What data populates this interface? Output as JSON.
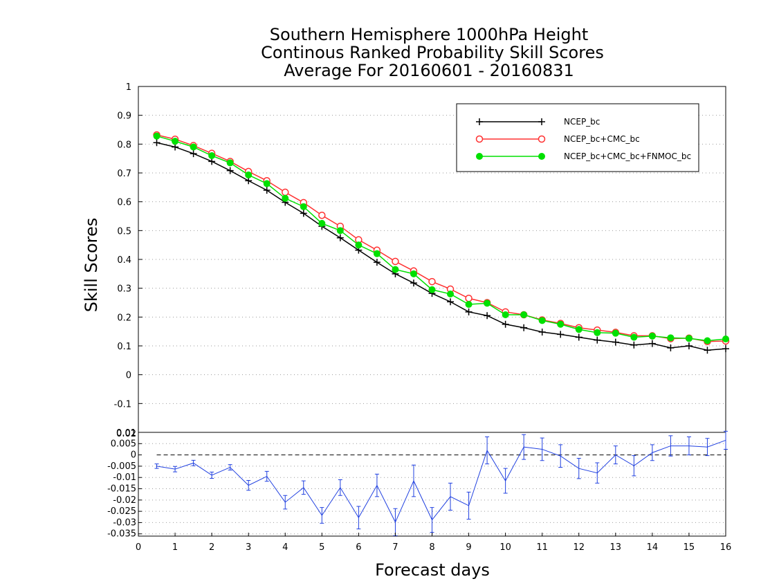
{
  "chart_data": [
    {
      "type": "line",
      "title": [
        "Southern Hemisphere 1000hPa Height",
        "Continous Ranked Probability Skill Scores",
        "Average For 20160601 - 20160831"
      ],
      "ylabel": "Skill Scores",
      "ylim": [
        -0.2,
        1
      ],
      "yticks": [
        1,
        0.9,
        0.8,
        0.7,
        0.6,
        0.5,
        0.4,
        0.3,
        0.2,
        0.1,
        0,
        -0.1
      ],
      "ytick_labels": [
        "1",
        "0.9",
        "0.8",
        "0.7",
        "0.6",
        "0.5",
        "0.4",
        "0.3",
        "0.2",
        "0.1",
        "0",
        "-0.1"
      ],
      "grid": true,
      "legend_position": "top-right",
      "x": [
        0.5,
        1,
        1.5,
        2,
        2.5,
        3,
        3.5,
        4,
        4.5,
        5,
        5.5,
        6,
        6.5,
        7,
        7.5,
        8,
        8.5,
        9,
        9.5,
        10,
        10.5,
        11,
        11.5,
        12,
        12.5,
        13,
        13.5,
        14,
        14.5,
        15,
        15.5,
        16
      ],
      "series": [
        {
          "name": "NCEP_bc",
          "color": "#000000",
          "marker": "plus",
          "values": [
            0.805,
            0.79,
            0.767,
            0.74,
            0.708,
            0.673,
            0.64,
            0.598,
            0.56,
            0.515,
            0.475,
            0.432,
            0.39,
            0.35,
            0.318,
            0.282,
            0.253,
            0.218,
            0.205,
            0.175,
            0.163,
            0.148,
            0.14,
            0.13,
            0.12,
            0.113,
            0.103,
            0.108,
            0.093,
            0.1,
            0.085,
            0.09
          ]
        },
        {
          "name": "NCEP_bc+CMC_bc",
          "color": "#ff3030",
          "marker": "circle-open",
          "values": [
            0.832,
            0.817,
            0.795,
            0.768,
            0.74,
            0.705,
            0.673,
            0.633,
            0.597,
            0.553,
            0.515,
            0.468,
            0.432,
            0.393,
            0.36,
            0.323,
            0.297,
            0.265,
            0.25,
            0.218,
            0.208,
            0.19,
            0.178,
            0.163,
            0.155,
            0.147,
            0.135,
            0.135,
            0.125,
            0.127,
            0.115,
            0.117
          ]
        },
        {
          "name": "NCEP_bc+CMC_bc+FNMOC_bc",
          "color": "#00e000",
          "marker": "circle-filled",
          "values": [
            0.828,
            0.81,
            0.79,
            0.76,
            0.735,
            0.693,
            0.663,
            0.612,
            0.583,
            0.525,
            0.5,
            0.45,
            0.42,
            0.365,
            0.35,
            0.295,
            0.28,
            0.244,
            0.248,
            0.208,
            0.208,
            0.188,
            0.175,
            0.157,
            0.146,
            0.144,
            0.13,
            0.134,
            0.128,
            0.126,
            0.118,
            0.124
          ]
        }
      ]
    },
    {
      "type": "line",
      "xlabel": "Forecast days",
      "xlim": [
        0,
        16
      ],
      "xticks": [
        0,
        1,
        2,
        3,
        4,
        5,
        6,
        7,
        8,
        9,
        10,
        11,
        12,
        13,
        14,
        15,
        16
      ],
      "ylim": [
        -0.036,
        0.01
      ],
      "yticks": [
        0.005,
        0,
        -0.005,
        -0.01,
        -0.015,
        -0.02,
        -0.025,
        -0.03,
        -0.035
      ],
      "ytick_labels": [
        "0.005",
        "0",
        "-0.005",
        "-0.01",
        "-0.015",
        "-0.02",
        "-0.025",
        "-0.03",
        "-0.035"
      ],
      "top_tick_labels": [
        "0.01",
        "0.02"
      ],
      "zero_line": "dashed",
      "x": [
        0.5,
        1,
        1.5,
        2,
        2.5,
        3,
        3.5,
        4,
        4.5,
        5,
        5.5,
        6,
        6.5,
        7,
        7.5,
        8,
        8.5,
        9,
        9.5,
        10,
        10.5,
        11,
        11.5,
        12,
        12.5,
        13,
        13.5,
        14,
        14.5,
        15,
        15.5,
        16
      ],
      "series": [
        {
          "color": "#2040e0",
          "marker": "error-bar",
          "values": [
            -0.005,
            -0.0063,
            -0.0036,
            -0.009,
            -0.0055,
            -0.0135,
            -0.0095,
            -0.021,
            -0.0145,
            -0.0268,
            -0.0145,
            -0.0278,
            -0.0135,
            -0.0298,
            -0.0115,
            -0.0288,
            -0.0185,
            -0.0225,
            0.002,
            -0.0115,
            0.0035,
            0.0025,
            -0.0005,
            -0.006,
            -0.008,
            0.0,
            -0.0048,
            0.001,
            0.004,
            0.004,
            0.0035,
            0.0065
          ],
          "errors": [
            0.001,
            0.0012,
            0.0012,
            0.0014,
            0.0012,
            0.0022,
            0.0022,
            0.003,
            0.003,
            0.0035,
            0.0035,
            0.005,
            0.005,
            0.006,
            0.007,
            0.0055,
            0.006,
            0.006,
            0.006,
            0.0055,
            0.0055,
            0.005,
            0.005,
            0.0045,
            0.0045,
            0.004,
            0.0045,
            0.0035,
            0.0045,
            0.004,
            0.0038,
            0.004
          ]
        }
      ]
    }
  ]
}
